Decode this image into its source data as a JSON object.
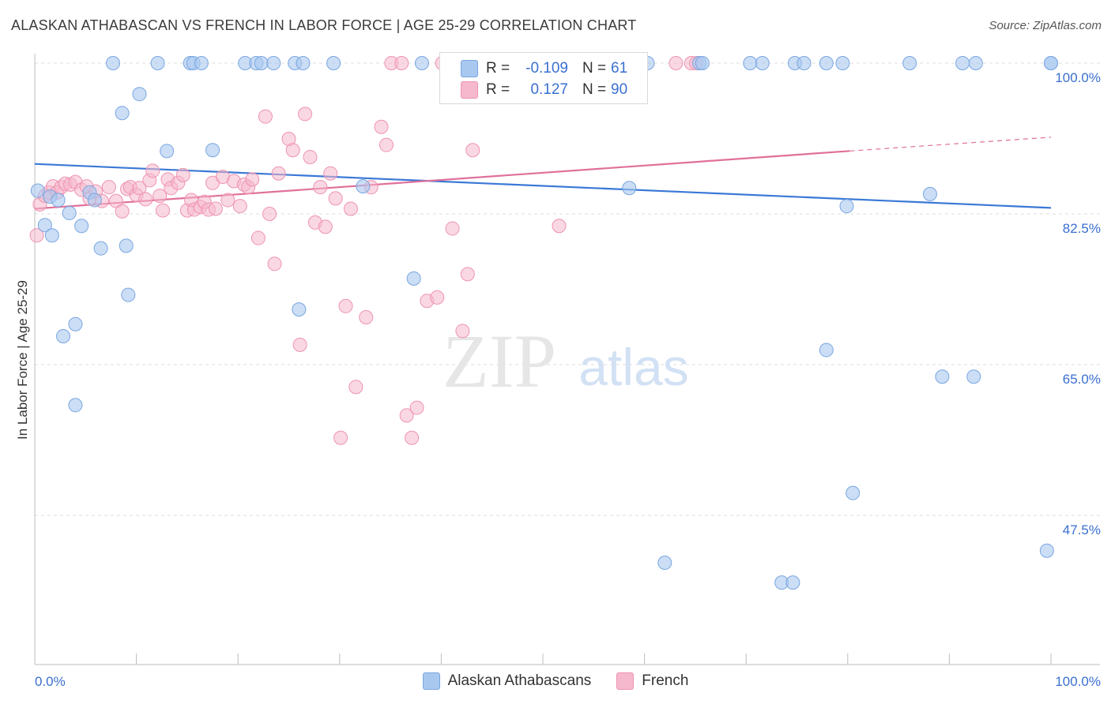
{
  "title": "ALASKAN ATHABASCAN VS FRENCH IN LABOR FORCE | AGE 25-29 CORRELATION CHART",
  "source": "Source: ZipAtlas.com",
  "watermark": {
    "zip": "ZIP",
    "atlas": "atlas"
  },
  "legend_stats": {
    "series1": {
      "r_label": "R =",
      "r_value": "-0.109",
      "n_label": "N =",
      "n_value": "61"
    },
    "series2": {
      "r_label": "R =",
      "r_value": "0.127",
      "n_label": "N =",
      "n_value": "90"
    }
  },
  "colors": {
    "blue_fill": "#a9c8f0",
    "blue_stroke": "#7aa6e0",
    "blue_line": "#3a78d6",
    "pink_fill": "#f6b8cc",
    "pink_stroke": "#ee93b1",
    "pink_line": "#e0709a",
    "axis_label": "#3a6fd0",
    "grid": "#dcdcdc"
  },
  "chart_data": {
    "type": "scatter",
    "title": "ALASKAN ATHABASCAN VS FRENCH IN LABOR FORCE | AGE 25-29 CORRELATION CHART",
    "xlabel": "",
    "ylabel": "In Labor Force | Age 25-29",
    "xlim": [
      0,
      100
    ],
    "ylim": [
      30,
      101
    ],
    "x_tick_labels": [
      "0.0%",
      "100.0%"
    ],
    "y_ticks": [
      47.5,
      65.0,
      82.5,
      100.0
    ],
    "y_tick_labels": [
      "47.5%",
      "65.0%",
      "82.5%",
      "100.0%"
    ],
    "series": [
      {
        "name": "Alaskan Athabascans",
        "color": "blue",
        "trend": {
          "x": [
            0,
            100
          ],
          "y": [
            88.3,
            83.2
          ]
        },
        "points": [
          [
            0.3,
            85.2
          ],
          [
            1.0,
            81.2
          ],
          [
            1.5,
            84.5
          ],
          [
            1.7,
            80.0
          ],
          [
            2.3,
            84.1
          ],
          [
            2.8,
            68.3
          ],
          [
            3.4,
            82.6
          ],
          [
            4.0,
            69.7
          ],
          [
            4.0,
            60.3
          ],
          [
            4.6,
            81.1
          ],
          [
            5.4,
            85.0
          ],
          [
            5.9,
            84.1
          ],
          [
            6.5,
            78.5
          ],
          [
            7.7,
            100.0
          ],
          [
            8.6,
            94.2
          ],
          [
            9.0,
            78.8
          ],
          [
            9.2,
            73.1
          ],
          [
            10.3,
            96.4
          ],
          [
            12.1,
            100.0
          ],
          [
            13.0,
            89.8
          ],
          [
            15.3,
            100.0
          ],
          [
            15.6,
            100.0
          ],
          [
            16.4,
            100.0
          ],
          [
            17.5,
            89.9
          ],
          [
            20.7,
            100.0
          ],
          [
            21.8,
            100.0
          ],
          [
            22.3,
            100.0
          ],
          [
            23.5,
            100.0
          ],
          [
            25.6,
            100.0
          ],
          [
            26.0,
            71.4
          ],
          [
            26.4,
            100.0
          ],
          [
            29.4,
            100.0
          ],
          [
            32.3,
            85.7
          ],
          [
            37.3,
            75.0
          ],
          [
            38.1,
            100.0
          ],
          [
            50.2,
            100.0
          ],
          [
            58.5,
            85.5
          ],
          [
            60.3,
            100.0
          ],
          [
            62.0,
            42.0
          ],
          [
            65.4,
            100.0
          ],
          [
            65.7,
            100.0
          ],
          [
            70.4,
            100.0
          ],
          [
            71.6,
            100.0
          ],
          [
            73.5,
            39.7
          ],
          [
            74.6,
            39.7
          ],
          [
            74.8,
            100.0
          ],
          [
            75.7,
            100.0
          ],
          [
            77.9,
            100.0
          ],
          [
            77.9,
            66.7
          ],
          [
            79.5,
            100.0
          ],
          [
            79.9,
            83.4
          ],
          [
            80.5,
            50.1
          ],
          [
            86.1,
            100.0
          ],
          [
            88.1,
            84.8
          ],
          [
            89.3,
            63.6
          ],
          [
            91.3,
            100.0
          ],
          [
            92.6,
            100.0
          ],
          [
            92.4,
            63.6
          ],
          [
            100.0,
            100.0
          ],
          [
            99.6,
            43.4
          ],
          [
            100.0,
            100.0
          ]
        ]
      },
      {
        "name": "French",
        "color": "pink",
        "trend": {
          "x": [
            0,
            80.2
          ],
          "y": [
            83.1,
            89.8
          ]
        },
        "trend_dashed": {
          "x": [
            80.2,
            100
          ],
          "y": [
            89.8,
            91.4
          ]
        },
        "points": [
          [
            0.2,
            80.0
          ],
          [
            0.5,
            83.6
          ],
          [
            1.0,
            84.6
          ],
          [
            1.4,
            85.0
          ],
          [
            1.8,
            85.7
          ],
          [
            2.2,
            85.0
          ],
          [
            2.6,
            85.6
          ],
          [
            3.0,
            86.0
          ],
          [
            3.5,
            85.9
          ],
          [
            4.0,
            86.2
          ],
          [
            4.6,
            85.3
          ],
          [
            5.1,
            85.7
          ],
          [
            5.4,
            84.3
          ],
          [
            6.0,
            85.1
          ],
          [
            6.6,
            84.0
          ],
          [
            7.3,
            85.6
          ],
          [
            8.0,
            84.0
          ],
          [
            8.6,
            82.8
          ],
          [
            9.1,
            85.4
          ],
          [
            9.4,
            85.6
          ],
          [
            10.0,
            84.7
          ],
          [
            10.3,
            85.5
          ],
          [
            10.9,
            84.2
          ],
          [
            11.3,
            86.4
          ],
          [
            11.6,
            87.5
          ],
          [
            12.3,
            84.6
          ],
          [
            12.6,
            82.9
          ],
          [
            13.1,
            86.5
          ],
          [
            13.4,
            85.5
          ],
          [
            14.1,
            86.1
          ],
          [
            14.6,
            87.0
          ],
          [
            15.0,
            82.9
          ],
          [
            15.4,
            84.1
          ],
          [
            15.7,
            83.0
          ],
          [
            16.3,
            83.3
          ],
          [
            16.7,
            83.9
          ],
          [
            17.1,
            83.0
          ],
          [
            17.5,
            86.1
          ],
          [
            17.8,
            83.1
          ],
          [
            18.5,
            86.8
          ],
          [
            19.0,
            84.1
          ],
          [
            19.6,
            86.3
          ],
          [
            20.2,
            83.4
          ],
          [
            20.6,
            85.9
          ],
          [
            21.0,
            85.6
          ],
          [
            21.4,
            86.5
          ],
          [
            22.0,
            79.7
          ],
          [
            22.7,
            93.8
          ],
          [
            23.1,
            82.5
          ],
          [
            23.6,
            76.7
          ],
          [
            24.0,
            87.2
          ],
          [
            25.0,
            91.2
          ],
          [
            25.4,
            89.9
          ],
          [
            26.1,
            67.3
          ],
          [
            26.6,
            94.1
          ],
          [
            27.1,
            89.1
          ],
          [
            27.6,
            81.5
          ],
          [
            28.1,
            85.6
          ],
          [
            28.6,
            81.0
          ],
          [
            29.1,
            87.2
          ],
          [
            29.6,
            84.3
          ],
          [
            30.1,
            56.5
          ],
          [
            30.6,
            71.8
          ],
          [
            31.1,
            83.1
          ],
          [
            31.6,
            62.4
          ],
          [
            32.6,
            70.5
          ],
          [
            33.1,
            85.6
          ],
          [
            34.1,
            92.6
          ],
          [
            34.6,
            90.5
          ],
          [
            35.1,
            100.0
          ],
          [
            36.1,
            100.0
          ],
          [
            36.6,
            59.1
          ],
          [
            37.1,
            56.5
          ],
          [
            37.6,
            60.0
          ],
          [
            38.6,
            72.4
          ],
          [
            39.6,
            72.8
          ],
          [
            40.1,
            100.0
          ],
          [
            41.1,
            80.8
          ],
          [
            42.1,
            68.9
          ],
          [
            42.6,
            75.5
          ],
          [
            43.1,
            89.9
          ],
          [
            43.6,
            96.1
          ],
          [
            45.1,
            100.0
          ],
          [
            48.1,
            100.0
          ],
          [
            51.6,
            81.1
          ],
          [
            57.1,
            100.0
          ],
          [
            59.6,
            100.0
          ],
          [
            63.1,
            100.0
          ],
          [
            64.6,
            100.0
          ],
          [
            65.1,
            100.0
          ]
        ]
      }
    ]
  },
  "bottom_legend": [
    "Alaskan Athabascans",
    "French"
  ]
}
